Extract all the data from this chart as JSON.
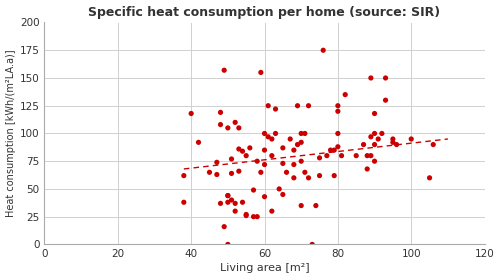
{
  "title": "Specific heat consumption per home (source: SIR)",
  "xlabel": "Living area [m²]",
  "ylabel": "Heat consumption [kWh/(m²LA.a)]",
  "xlim": [
    0,
    120
  ],
  "ylim": [
    0,
    200
  ],
  "xticks": [
    0,
    20,
    40,
    60,
    80,
    100,
    120
  ],
  "yticks": [
    0,
    25,
    50,
    75,
    100,
    125,
    150,
    175,
    200
  ],
  "dot_color": "#cc0000",
  "trendline_color": "#cc0000",
  "background_color": "#ffffff",
  "grid_color": "#d0d0d0",
  "scatter_x": [
    38,
    38,
    40,
    42,
    45,
    47,
    47,
    48,
    48,
    48,
    49,
    49,
    50,
    50,
    50,
    50,
    50,
    51,
    51,
    51,
    52,
    52,
    52,
    53,
    53,
    53,
    54,
    54,
    55,
    55,
    55,
    56,
    57,
    57,
    58,
    58,
    59,
    59,
    60,
    60,
    60,
    60,
    61,
    61,
    62,
    62,
    62,
    63,
    63,
    64,
    65,
    65,
    65,
    66,
    67,
    68,
    68,
    68,
    69,
    69,
    70,
    70,
    70,
    70,
    71,
    71,
    72,
    72,
    73,
    74,
    75,
    75,
    76,
    77,
    78,
    79,
    79,
    80,
    80,
    80,
    80,
    81,
    82,
    85,
    87,
    88,
    88,
    89,
    89,
    89,
    90,
    90,
    90,
    90,
    91,
    92,
    93,
    93,
    95,
    95,
    96,
    100,
    105,
    106
  ],
  "scatter_y": [
    38,
    62,
    118,
    92,
    65,
    74,
    63,
    37,
    108,
    119,
    157,
    16,
    0,
    38,
    44,
    44,
    105,
    40,
    64,
    77,
    30,
    37,
    110,
    66,
    86,
    105,
    38,
    84,
    26,
    27,
    80,
    87,
    25,
    49,
    25,
    75,
    65,
    155,
    43,
    72,
    85,
    100,
    97,
    125,
    30,
    80,
    95,
    100,
    122,
    50,
    45,
    73,
    87,
    65,
    95,
    60,
    72,
    85,
    90,
    125,
    35,
    75,
    92,
    100,
    65,
    100,
    60,
    125,
    0,
    35,
    62,
    78,
    175,
    80,
    85,
    85,
    62,
    88,
    100,
    120,
    125,
    80,
    135,
    80,
    90,
    68,
    80,
    80,
    97,
    150,
    75,
    90,
    100,
    118,
    95,
    100,
    130,
    150,
    92,
    95,
    90,
    95,
    60,
    90
  ],
  "trendline_x0": 38,
  "trendline_x1": 110,
  "trendline_y0": 68,
  "trendline_y1": 95,
  "figsize": [
    5.0,
    2.79
  ],
  "dpi": 100
}
